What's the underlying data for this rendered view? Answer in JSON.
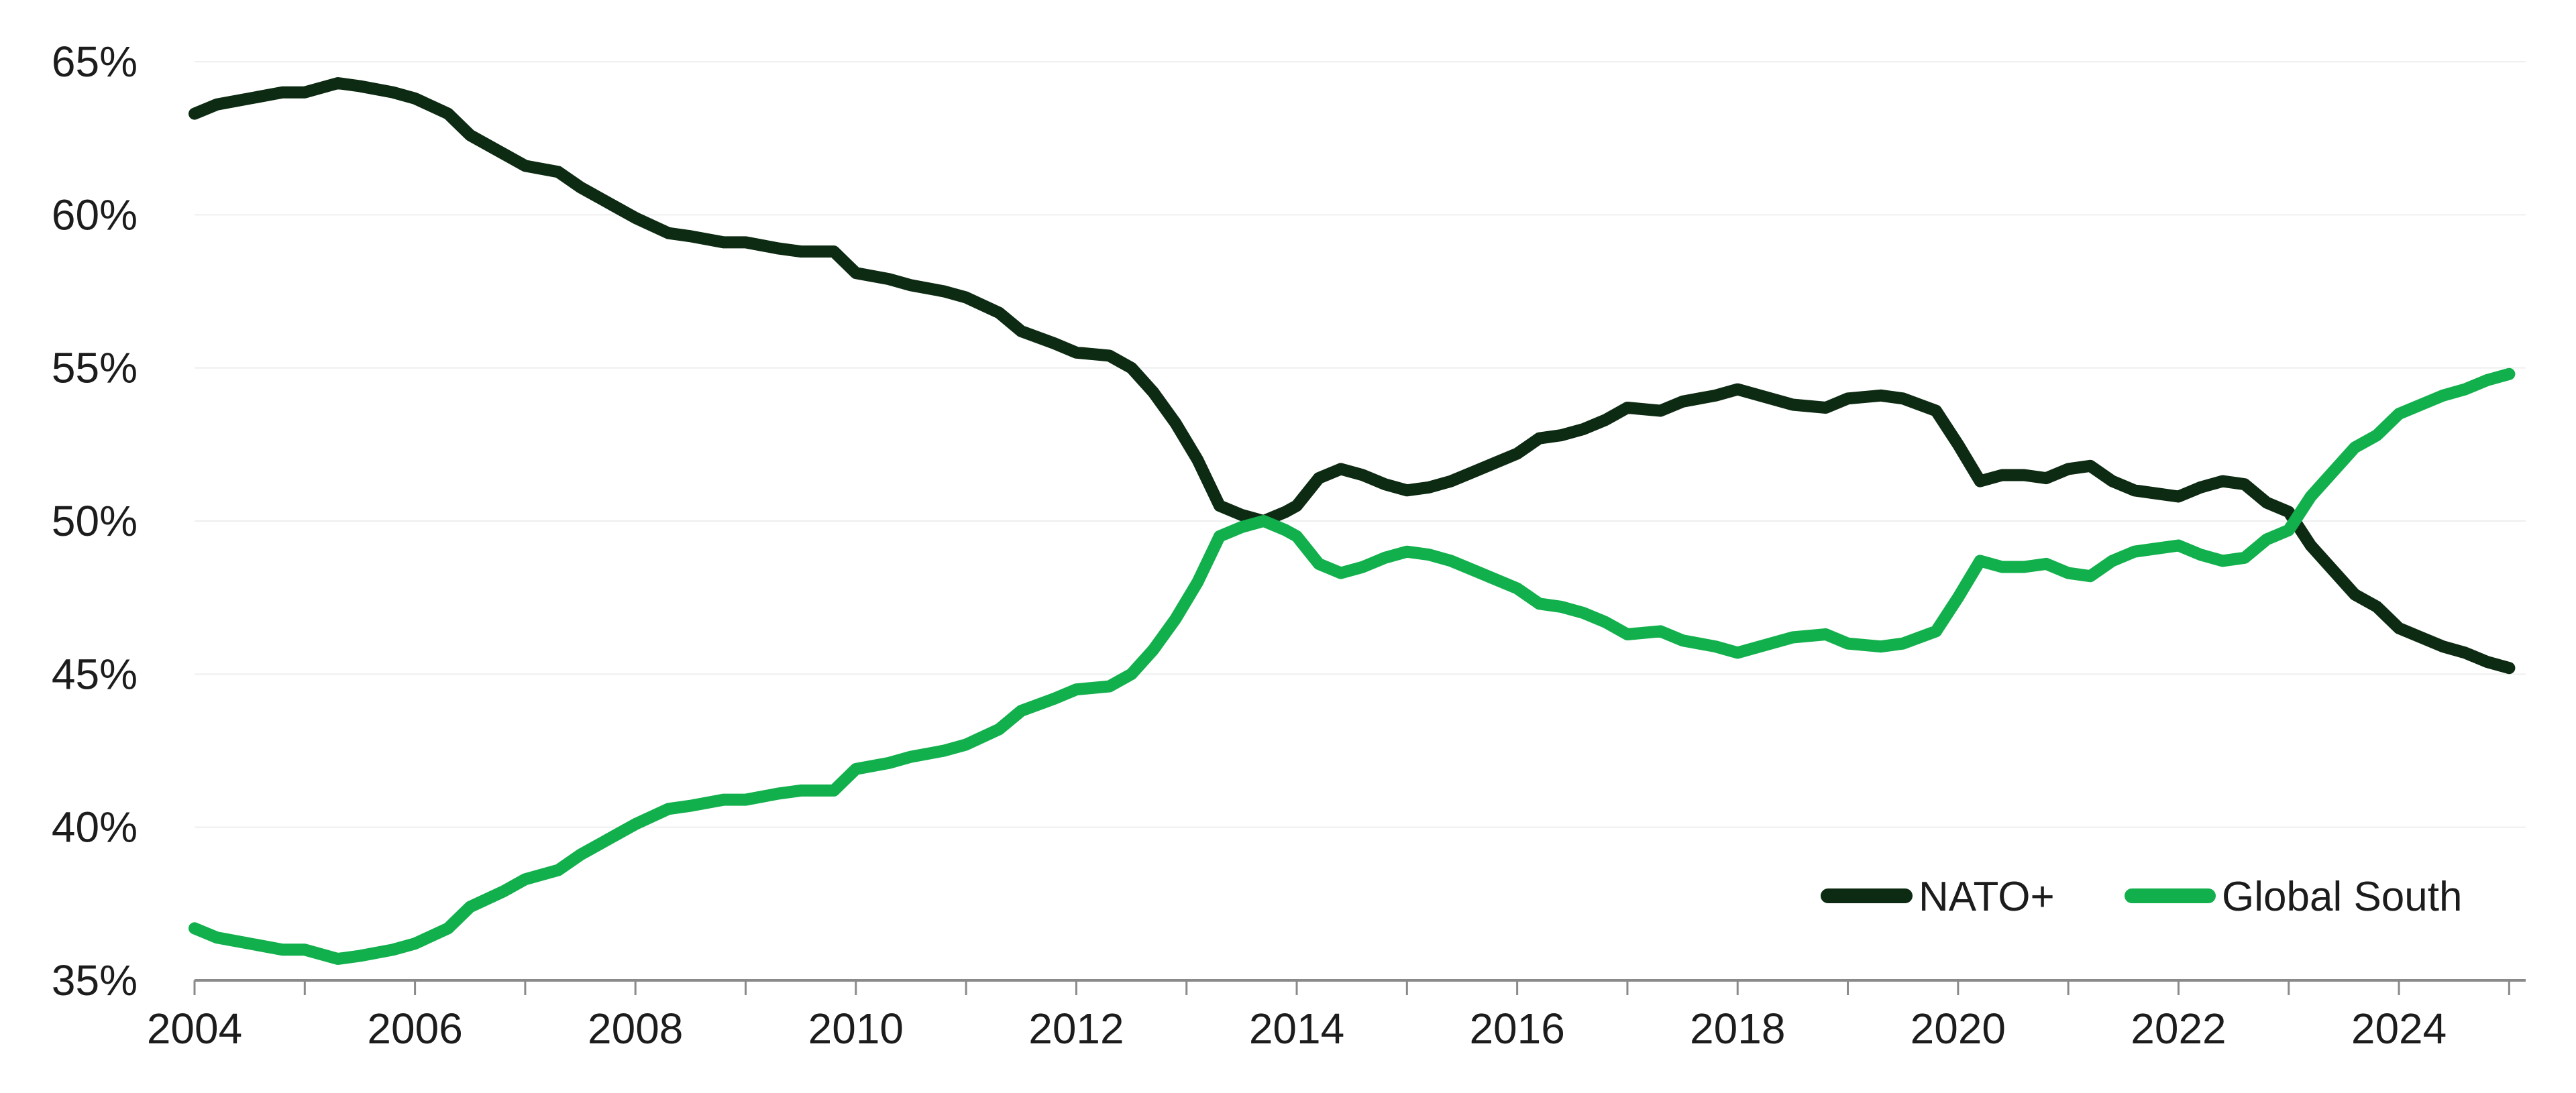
{
  "chart_data": {
    "type": "line",
    "title": "",
    "xlabel": "",
    "ylabel": "",
    "xlim": [
      2004,
      2025.15
    ],
    "ylim": [
      35,
      65
    ],
    "grid": true,
    "legend_position": "bottom-right",
    "y_ticks": [
      35,
      40,
      45,
      50,
      55,
      60,
      65
    ],
    "y_tick_labels": [
      "35%",
      "40%",
      "45%",
      "50%",
      "55%",
      "60%",
      "65%"
    ],
    "x_ticks": [
      2004,
      2006,
      2008,
      2010,
      2012,
      2014,
      2016,
      2018,
      2020,
      2022,
      2024
    ],
    "x_tick_labels": [
      "2004",
      "2006",
      "2008",
      "2010",
      "2012",
      "2014",
      "2016",
      "2018",
      "2020",
      "2022",
      "2024"
    ],
    "series": [
      {
        "name": "NATO+",
        "color": "#0d2a12",
        "x": [
          2004.0,
          2004.2,
          2004.5,
          2004.8,
          2005.0,
          2005.3,
          2005.5,
          2005.8,
          2006.0,
          2006.3,
          2006.5,
          2006.8,
          2007.0,
          2007.3,
          2007.5,
          2007.8,
          2008.0,
          2008.3,
          2008.5,
          2008.8,
          2009.0,
          2009.3,
          2009.5,
          2009.8,
          2010.0,
          2010.3,
          2010.5,
          2010.8,
          2011.0,
          2011.3,
          2011.5,
          2011.8,
          2012.0,
          2012.3,
          2012.5,
          2012.7,
          2012.9,
          2013.1,
          2013.3,
          2013.5,
          2013.7,
          2013.9,
          2014.0,
          2014.2,
          2014.4,
          2014.6,
          2014.8,
          2015.0,
          2015.2,
          2015.4,
          2015.6,
          2015.8,
          2016.0,
          2016.2,
          2016.4,
          2016.6,
          2016.8,
          2017.0,
          2017.3,
          2017.5,
          2017.8,
          2018.0,
          2018.3,
          2018.5,
          2018.8,
          2019.0,
          2019.3,
          2019.5,
          2019.8,
          2020.0,
          2020.2,
          2020.4,
          2020.6,
          2020.8,
          2021.0,
          2021.2,
          2021.4,
          2021.6,
          2021.8,
          2022.0,
          2022.2,
          2022.4,
          2022.6,
          2022.8,
          2023.0,
          2023.2,
          2023.4,
          2023.6,
          2023.8,
          2024.0,
          2024.2,
          2024.4,
          2024.6,
          2024.8,
          2025.0
        ],
        "values": [
          63.3,
          63.6,
          63.8,
          64.0,
          64.0,
          64.3,
          64.2,
          64.0,
          63.8,
          63.3,
          62.6,
          62.0,
          61.6,
          61.4,
          60.9,
          60.3,
          59.9,
          59.4,
          59.3,
          59.1,
          59.1,
          58.9,
          58.8,
          58.8,
          58.1,
          57.9,
          57.7,
          57.5,
          57.3,
          56.8,
          56.2,
          55.8,
          55.5,
          55.4,
          55.0,
          54.2,
          53.2,
          52.0,
          50.5,
          50.2,
          50.0,
          50.3,
          50.5,
          51.4,
          51.7,
          51.5,
          51.2,
          51.0,
          51.1,
          51.3,
          51.6,
          51.9,
          52.2,
          52.7,
          52.8,
          53.0,
          53.3,
          53.7,
          53.6,
          53.9,
          54.1,
          54.3,
          54.0,
          53.8,
          53.7,
          54.0,
          54.1,
          54.0,
          53.6,
          52.5,
          51.3,
          51.5,
          51.5,
          51.4,
          51.7,
          51.8,
          51.3,
          51.0,
          50.9,
          50.8,
          51.1,
          51.3,
          51.2,
          50.6,
          50.3,
          49.2,
          48.4,
          47.6,
          47.2,
          46.5,
          46.2,
          45.9,
          45.7,
          45.4,
          45.2
        ]
      },
      {
        "name": "Global South",
        "color": "#12b04c",
        "x": [
          2004.0,
          2004.2,
          2004.5,
          2004.8,
          2005.0,
          2005.3,
          2005.5,
          2005.8,
          2006.0,
          2006.3,
          2006.5,
          2006.8,
          2007.0,
          2007.3,
          2007.5,
          2007.8,
          2008.0,
          2008.3,
          2008.5,
          2008.8,
          2009.0,
          2009.3,
          2009.5,
          2009.8,
          2010.0,
          2010.3,
          2010.5,
          2010.8,
          2011.0,
          2011.3,
          2011.5,
          2011.8,
          2012.0,
          2012.3,
          2012.5,
          2012.7,
          2012.9,
          2013.1,
          2013.3,
          2013.5,
          2013.7,
          2013.9,
          2014.0,
          2014.2,
          2014.4,
          2014.6,
          2014.8,
          2015.0,
          2015.2,
          2015.4,
          2015.6,
          2015.8,
          2016.0,
          2016.2,
          2016.4,
          2016.6,
          2016.8,
          2017.0,
          2017.3,
          2017.5,
          2017.8,
          2018.0,
          2018.3,
          2018.5,
          2018.8,
          2019.0,
          2019.3,
          2019.5,
          2019.8,
          2020.0,
          2020.2,
          2020.4,
          2020.6,
          2020.8,
          2021.0,
          2021.2,
          2021.4,
          2021.6,
          2021.8,
          2022.0,
          2022.2,
          2022.4,
          2022.6,
          2022.8,
          2023.0,
          2023.2,
          2023.4,
          2023.6,
          2023.8,
          2024.0,
          2024.2,
          2024.4,
          2024.6,
          2024.8,
          2025.0
        ],
        "values": [
          36.7,
          36.4,
          36.2,
          36.0,
          36.0,
          35.7,
          35.8,
          36.0,
          36.2,
          36.7,
          37.4,
          37.9,
          38.3,
          38.6,
          39.1,
          39.7,
          40.1,
          40.6,
          40.7,
          40.9,
          40.9,
          41.1,
          41.2,
          41.2,
          41.9,
          42.1,
          42.3,
          42.5,
          42.7,
          43.2,
          43.8,
          44.2,
          44.5,
          44.6,
          45.0,
          45.8,
          46.8,
          48.0,
          49.5,
          49.8,
          50.0,
          49.7,
          49.5,
          48.6,
          48.3,
          48.5,
          48.8,
          49.0,
          48.9,
          48.7,
          48.4,
          48.1,
          47.8,
          47.3,
          47.2,
          47.0,
          46.7,
          46.3,
          46.4,
          46.1,
          45.9,
          45.7,
          46.0,
          46.2,
          46.3,
          46.0,
          45.9,
          46.0,
          46.4,
          47.5,
          48.7,
          48.5,
          48.5,
          48.6,
          48.3,
          48.2,
          48.7,
          49.0,
          49.1,
          49.2,
          48.9,
          48.7,
          48.8,
          49.4,
          49.7,
          50.8,
          51.6,
          52.4,
          52.8,
          53.5,
          53.8,
          54.1,
          54.3,
          54.6,
          54.8
        ]
      }
    ]
  }
}
